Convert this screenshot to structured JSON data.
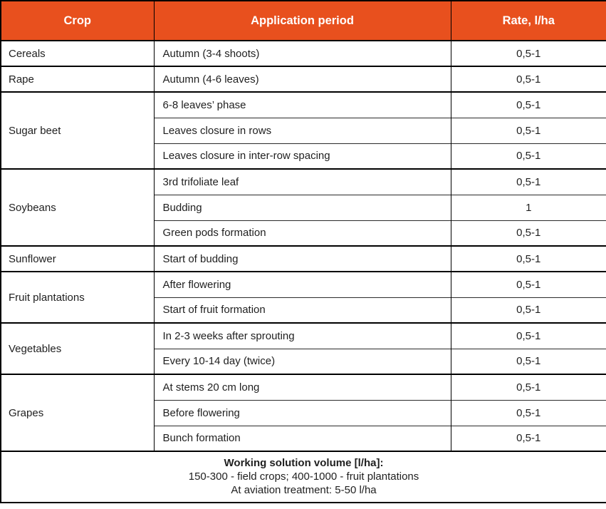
{
  "chart_data": {
    "type": "table",
    "columns": [
      "Crop",
      "Application period",
      "Rate, l/ha"
    ],
    "groups": [
      {
        "crop": "Cereals",
        "rows": [
          {
            "period": "Autumn (3-4 shoots)",
            "rate": "0,5-1"
          }
        ]
      },
      {
        "crop": "Rape",
        "rows": [
          {
            "period": "Autumn (4-6 leaves)",
            "rate": "0,5-1"
          }
        ]
      },
      {
        "crop": "Sugar beet",
        "rows": [
          {
            "period": "6-8 leaves’ phase",
            "rate": "0,5-1"
          },
          {
            "period": "Leaves closure in rows",
            "rate": "0,5-1"
          },
          {
            "period": "Leaves closure in inter-row spacing",
            "rate": "0,5-1"
          }
        ]
      },
      {
        "crop": "Soybeans",
        "rows": [
          {
            "period": "3rd trifoliate leaf",
            "rate": "0,5-1"
          },
          {
            "period": "Budding",
            "rate": "1"
          },
          {
            "period": "Green pods formation",
            "rate": "0,5-1"
          }
        ]
      },
      {
        "crop": "Sunflower",
        "rows": [
          {
            "period": "Start of budding",
            "rate": "0,5-1"
          }
        ]
      },
      {
        "crop": "Fruit plantations",
        "rows": [
          {
            "period": "After flowering",
            "rate": "0,5-1"
          },
          {
            "period": "Start of fruit formation",
            "rate": "0,5-1"
          }
        ]
      },
      {
        "crop": "Vegetables",
        "rows": [
          {
            "period": "In 2-3 weeks after sprouting",
            "rate": "0,5-1"
          },
          {
            "period": "Every 10-14 day (twice)",
            "rate": "0,5-1"
          }
        ]
      },
      {
        "crop": "Grapes",
        "rows": [
          {
            "period": "At stems 20 cm long",
            "rate": "0,5-1"
          },
          {
            "period": "Before flowering",
            "rate": "0,5-1"
          },
          {
            "period": "Bunch formation",
            "rate": "0,5-1"
          }
        ]
      }
    ],
    "footer": {
      "line1": "Working solution volume [l/ha]:",
      "line2": "150-300 - field crops; 400-1000 - fruit plantations",
      "line3": "At aviation treatment: 5-50 l/ha"
    }
  },
  "colors": {
    "header_bg": "#E8501E",
    "header_text": "#FFFFFF",
    "body_text": "#1F1F1F",
    "border": "#000000"
  }
}
